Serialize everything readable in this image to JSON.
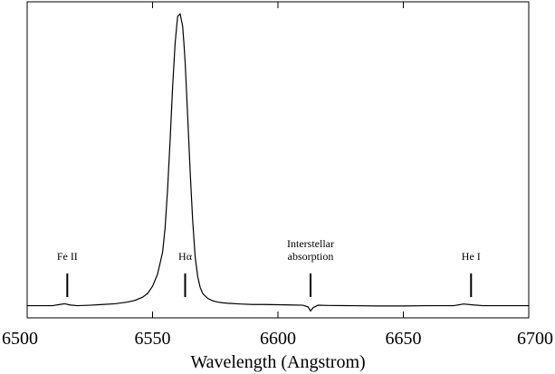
{
  "chart_data": {
    "type": "line",
    "title": "",
    "xlabel": "Wavelength (Angstrom)",
    "ylabel": "",
    "xlim": [
      6500,
      6700
    ],
    "ylim": [
      0.5,
      13.5
    ],
    "grid": false,
    "xticks": [
      6500,
      6550,
      6600,
      6650,
      6700
    ],
    "xtick_labels": [
      "6500",
      "6550",
      "6600",
      "6650",
      "6700"
    ],
    "series": [
      {
        "x": [
          6500,
          6505,
          6510,
          6513,
          6515,
          6517,
          6520,
          6525,
          6530,
          6535,
          6540,
          6543,
          6546,
          6548,
          6550,
          6552,
          6554,
          6555,
          6556,
          6557,
          6558,
          6559,
          6560,
          6561,
          6562,
          6562.5,
          6563,
          6564,
          6565,
          6566,
          6567,
          6568,
          6569,
          6570,
          6572,
          6574,
          6576,
          6578,
          6580,
          6585,
          6590,
          6595,
          6600,
          6605,
          6610,
          6612,
          6613,
          6614,
          6616,
          6620,
          6630,
          6640,
          6650,
          6660,
          6670,
          6674,
          6678,
          6682,
          6690,
          6700
        ],
        "y": [
          1.0,
          1.0,
          1.0,
          1.05,
          1.08,
          1.03,
          1.0,
          1.02,
          1.05,
          1.08,
          1.15,
          1.22,
          1.35,
          1.5,
          1.8,
          2.3,
          3.2,
          4.2,
          5.8,
          7.8,
          10.0,
          11.8,
          12.9,
          13.0,
          12.5,
          11.8,
          11.0,
          8.8,
          6.5,
          4.5,
          3.0,
          2.2,
          1.75,
          1.5,
          1.3,
          1.2,
          1.15,
          1.12,
          1.1,
          1.07,
          1.05,
          1.05,
          1.04,
          1.03,
          1.02,
          0.95,
          0.78,
          0.92,
          1.02,
          1.01,
          1.0,
          0.99,
          0.99,
          1.0,
          1.0,
          1.07,
          1.03,
          1.0,
          1.0,
          1.0
        ]
      }
    ],
    "annotations": [
      {
        "label": "Fe II",
        "x": 6516
      },
      {
        "label": "Hα",
        "x": 6563
      },
      {
        "label_lines": [
          "Interstellar",
          "absorption"
        ],
        "x": 6613
      },
      {
        "label": "He I",
        "x": 6677
      }
    ]
  }
}
